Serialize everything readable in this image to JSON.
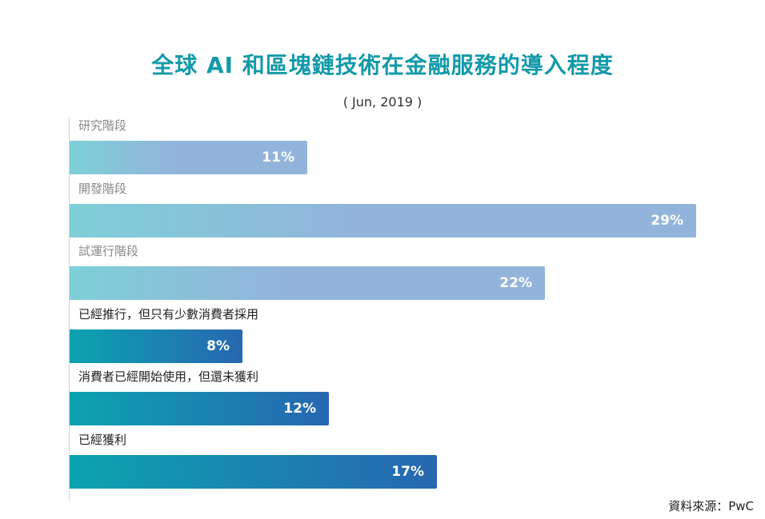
{
  "title": "全球 AI 和區塊鏈技術在金融服務的導入程度",
  "subtitle": "( Jun, 2019 )",
  "source": "資料來源：PwC",
  "colors": {
    "title": "#139aa9",
    "light_label": "#888888",
    "dark_label": "#222222",
    "light_bar_start": "#7dd0d8",
    "light_bar_end": "#93b4da",
    "dark_bar_start": "#0ba3b0",
    "dark_bar_end": "#2767b0"
  },
  "chart_data": {
    "type": "bar",
    "orientation": "horizontal",
    "categories": [
      "研究階段",
      "開發階段",
      "試運行階段",
      "已經推行，但只有少數消費者採用",
      "消費者已經開始使用，但還未獲利",
      "已經獲利"
    ],
    "values": [
      11,
      29,
      22,
      8,
      12,
      17
    ],
    "value_labels": [
      "11%",
      "29%",
      "22%",
      "8%",
      "12%",
      "17%"
    ],
    "styles": [
      "light",
      "light",
      "light",
      "dark",
      "dark",
      "dark"
    ],
    "xlim": [
      0,
      29
    ],
    "grid": false
  }
}
